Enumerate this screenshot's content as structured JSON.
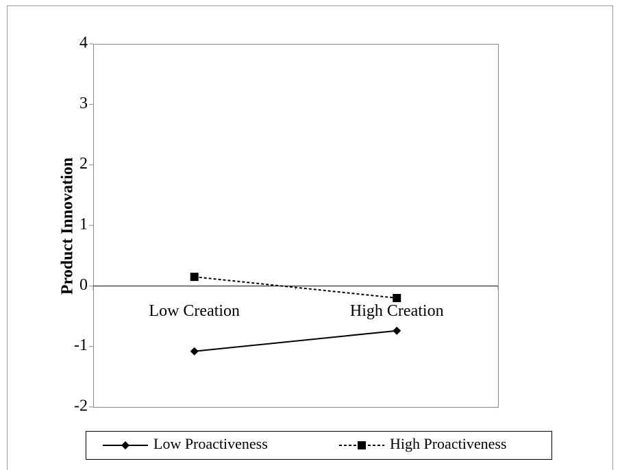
{
  "chart_data": {
    "type": "line",
    "y_label": "Product Innovation",
    "categories": [
      "Low Creation",
      "High Creation"
    ],
    "series": [
      {
        "name": "Low Proactiveness",
        "color": "#000000",
        "dashed": false,
        "marker": "diamond",
        "values": [
          -1.08,
          -0.74
        ]
      },
      {
        "name": "High Proactiveness",
        "color": "#000000",
        "dashed": true,
        "marker": "square",
        "values": [
          0.15,
          -0.2
        ]
      }
    ],
    "ylim": [
      -2,
      4
    ],
    "yticks": [
      -2,
      -1,
      0,
      1,
      2,
      3,
      4
    ],
    "grid": false,
    "legend": "bottom"
  }
}
